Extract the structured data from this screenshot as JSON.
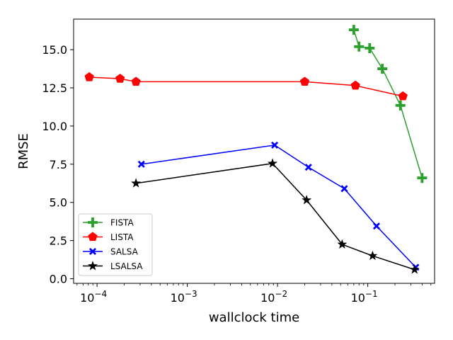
{
  "chart_data": {
    "type": "line",
    "xscale": "log",
    "xlabel": "wallclock time",
    "ylabel": "RMSE",
    "xlim": [
      5.5e-05,
      0.55
    ],
    "ylim": [
      -0.3,
      17.0
    ],
    "xticks": [
      {
        "value": 0.0001,
        "base": "10",
        "exp": "−4"
      },
      {
        "value": 0.001,
        "base": "10",
        "exp": "−3"
      },
      {
        "value": 0.01,
        "base": "10",
        "exp": "−2"
      },
      {
        "value": 0.1,
        "base": "10",
        "exp": "−1"
      }
    ],
    "yticks": [
      {
        "value": 0,
        "label": "0.0"
      },
      {
        "value": 2.5,
        "label": "2.5"
      },
      {
        "value": 5,
        "label": "5.0"
      },
      {
        "value": 7.5,
        "label": "7.5"
      },
      {
        "value": 10,
        "label": "10.0"
      },
      {
        "value": 12.5,
        "label": "12.5"
      },
      {
        "value": 15,
        "label": "15.0"
      }
    ],
    "grid": false,
    "legend_position": "lower-left",
    "series": [
      {
        "name": "FISTA",
        "color": "#2ca02c",
        "marker": "plus",
        "x": [
          0.07,
          0.08,
          0.105,
          0.145,
          0.23,
          0.4
        ],
        "y": [
          16.3,
          15.2,
          15.1,
          13.75,
          11.35,
          6.6
        ]
      },
      {
        "name": "LISTA",
        "color": "#ff0000",
        "marker": "pentagon",
        "x": [
          8.2e-05,
          0.00018,
          0.00027,
          0.02,
          0.073,
          0.245
        ],
        "y": [
          13.2,
          13.1,
          12.9,
          12.9,
          12.65,
          11.95
        ]
      },
      {
        "name": "SALSA",
        "color": "#0000ff",
        "marker": "x",
        "x": [
          0.00031,
          0.0093,
          0.022,
          0.055,
          0.125,
          0.34
        ],
        "y": [
          7.5,
          8.75,
          7.3,
          5.9,
          3.45,
          0.75
        ]
      },
      {
        "name": "LSALSA",
        "color": "#000000",
        "marker": "star",
        "x": [
          0.00027,
          0.0088,
          0.021,
          0.052,
          0.113,
          0.33
        ],
        "y": [
          6.25,
          7.55,
          5.15,
          2.25,
          1.5,
          0.6
        ]
      }
    ]
  }
}
